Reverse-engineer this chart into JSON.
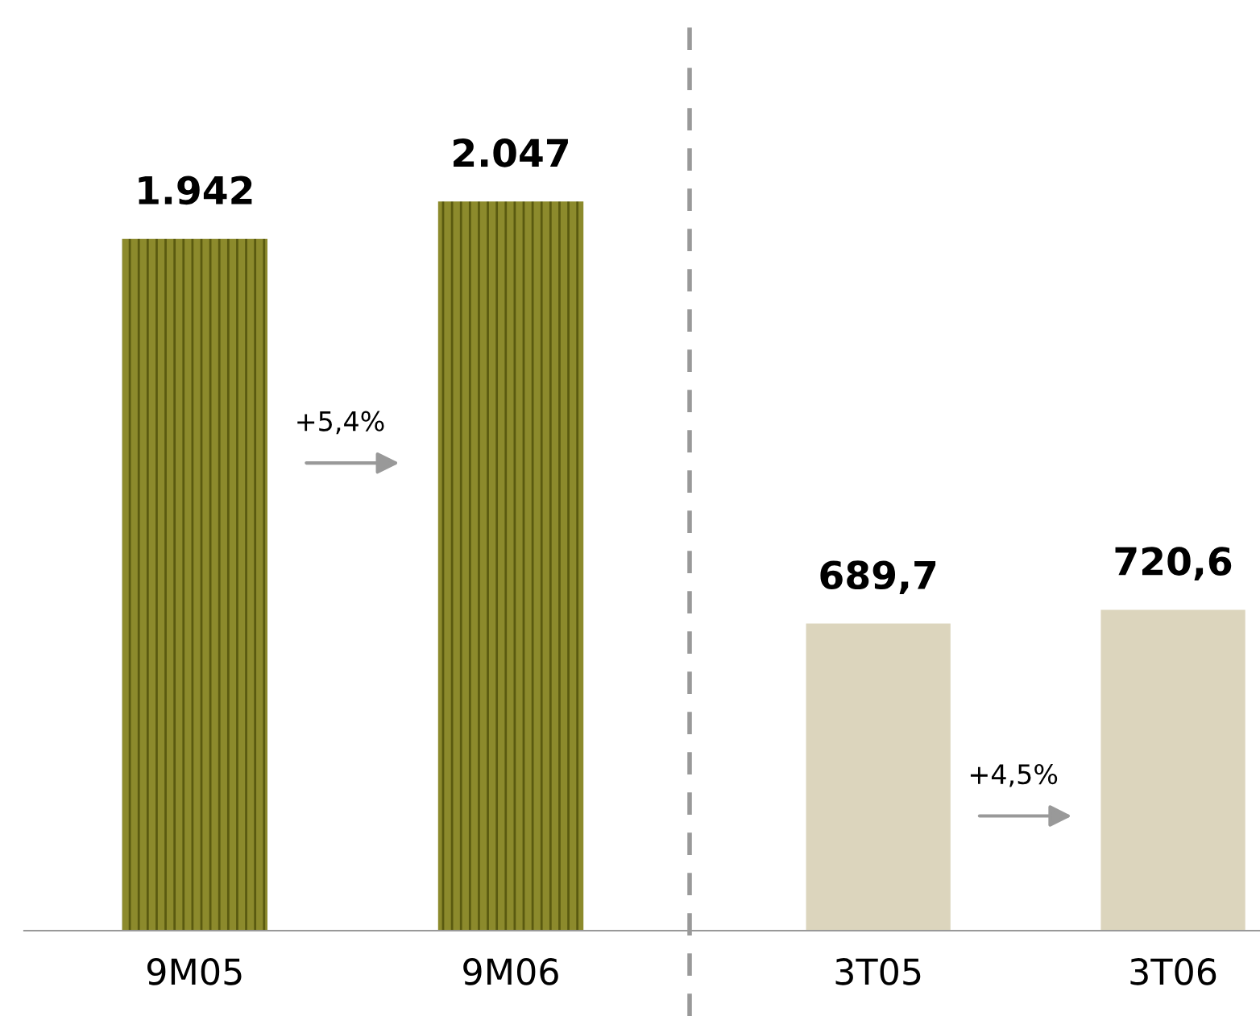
{
  "chart_data": [
    {
      "type": "bar",
      "categories": [
        "9M05",
        "9M06"
      ],
      "values": [
        1942,
        2047
      ],
      "value_labels": [
        "1.942",
        "2.047"
      ],
      "color": "#8c8a2c",
      "tick_labels": "x",
      "grid": false,
      "legend": false,
      "annotations": [
        "+5,4%"
      ]
    },
    {
      "type": "bar",
      "categories": [
        "3T05",
        "3T06"
      ],
      "values": [
        689.7,
        720.6
      ],
      "value_labels": [
        "689,7",
        "720,6"
      ],
      "color": "#dcd5bd",
      "tick_labels": "x",
      "grid": false,
      "legend": false,
      "annotations": [
        "+4,5%"
      ]
    }
  ]
}
